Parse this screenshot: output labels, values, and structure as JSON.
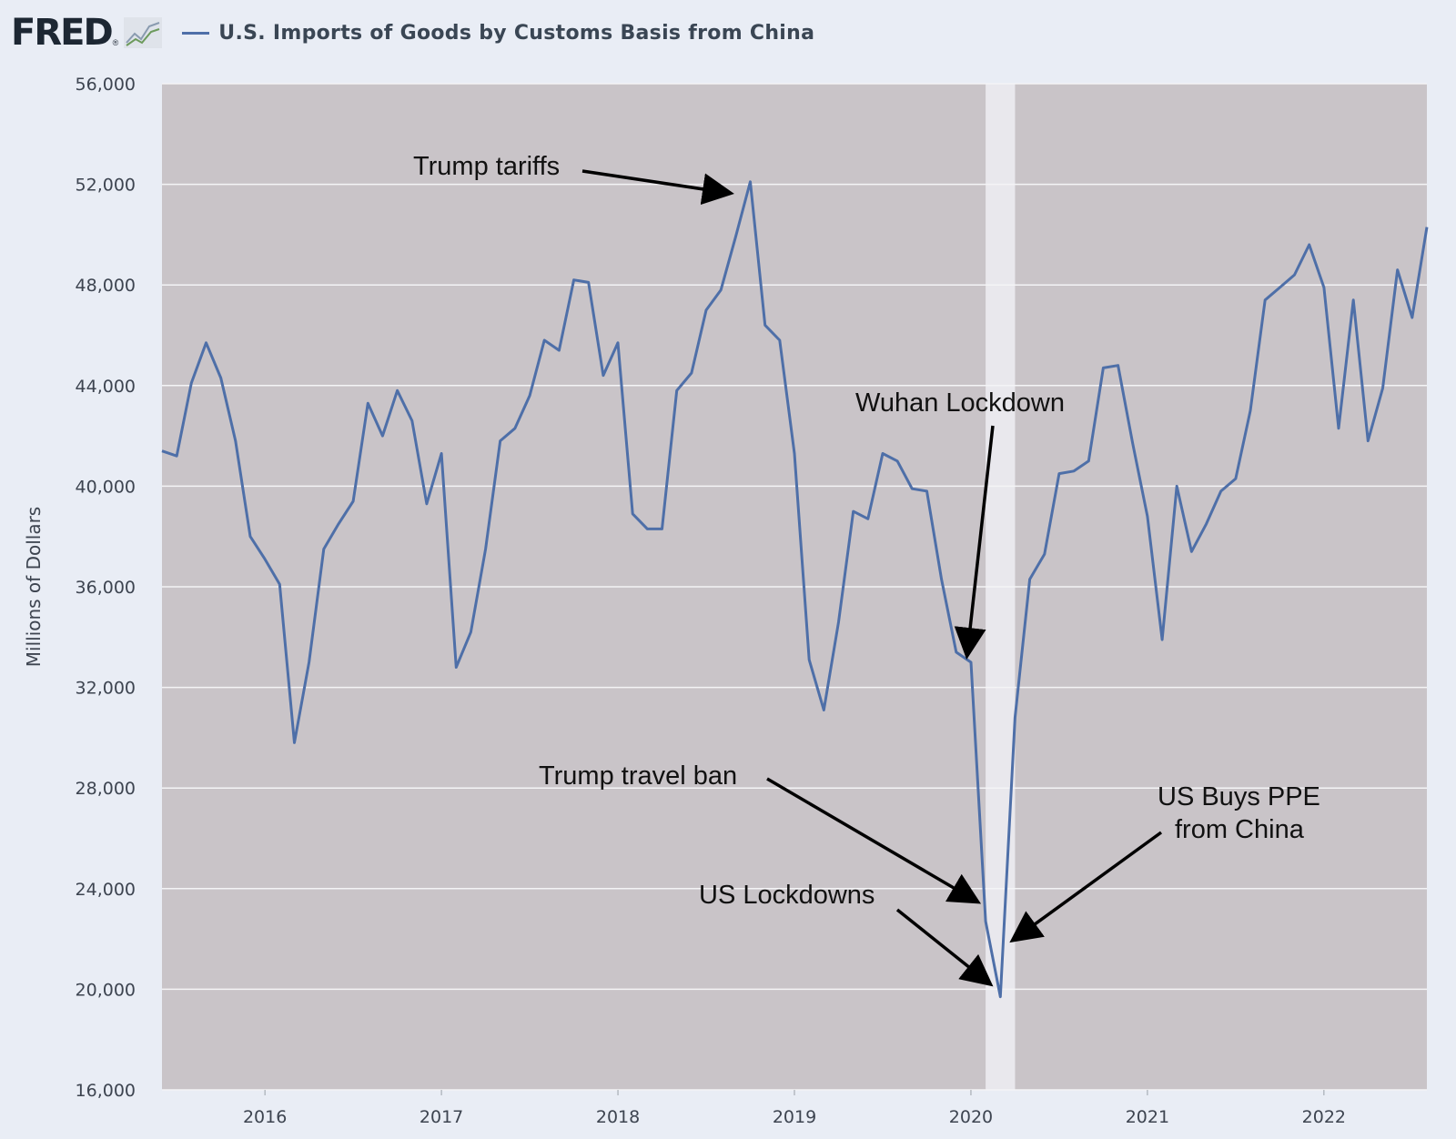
{
  "header": {
    "logo_text": "FRED",
    "logo_reg": "®",
    "title": "U.S. Imports of Goods by Customs Basis from China"
  },
  "colors": {
    "series": "#4e6fa8",
    "plot_bg": "#c9c4c8",
    "recession_band": "#e9e8ed",
    "page_bg": "#e9edf5"
  },
  "chart_data": {
    "type": "line",
    "ylabel": "Millions of Dollars",
    "ylim": [
      16000,
      56000
    ],
    "xlim": [
      "2015-06",
      "2022-08"
    ],
    "yticks": [
      16000,
      20000,
      24000,
      28000,
      32000,
      36000,
      40000,
      44000,
      48000,
      52000,
      56000
    ],
    "ytick_labels": [
      "16,000",
      "20,000",
      "24,000",
      "28,000",
      "32,000",
      "36,000",
      "40,000",
      "44,000",
      "48,000",
      "52,000",
      "56,000"
    ],
    "xtick_labels": [
      "2016",
      "2017",
      "2018",
      "2019",
      "2020",
      "2021",
      "2022"
    ],
    "grid": "horizontal",
    "shaded_period": [
      "2020-02",
      "2020-04"
    ],
    "series": [
      {
        "name": "U.S. Imports of Goods by Customs Basis from China",
        "x": [
          "2015-06",
          "2015-07",
          "2015-08",
          "2015-09",
          "2015-10",
          "2015-11",
          "2015-12",
          "2016-01",
          "2016-02",
          "2016-03",
          "2016-04",
          "2016-05",
          "2016-06",
          "2016-07",
          "2016-08",
          "2016-09",
          "2016-10",
          "2016-11",
          "2016-12",
          "2017-01",
          "2017-02",
          "2017-03",
          "2017-04",
          "2017-05",
          "2017-06",
          "2017-07",
          "2017-08",
          "2017-09",
          "2017-10",
          "2017-11",
          "2017-12",
          "2018-01",
          "2018-02",
          "2018-03",
          "2018-04",
          "2018-05",
          "2018-06",
          "2018-07",
          "2018-08",
          "2018-09",
          "2018-10",
          "2018-11",
          "2018-12",
          "2019-01",
          "2019-02",
          "2019-03",
          "2019-04",
          "2019-05",
          "2019-06",
          "2019-07",
          "2019-08",
          "2019-09",
          "2019-10",
          "2019-11",
          "2019-12",
          "2020-01",
          "2020-02",
          "2020-03",
          "2020-04",
          "2020-05",
          "2020-06",
          "2020-07",
          "2020-08",
          "2020-09",
          "2020-10",
          "2020-11",
          "2020-12",
          "2021-01",
          "2021-02",
          "2021-03",
          "2021-04",
          "2021-05",
          "2021-06",
          "2021-07",
          "2021-08",
          "2021-09",
          "2021-10",
          "2021-11",
          "2021-12",
          "2022-01",
          "2022-02",
          "2022-03",
          "2022-04",
          "2022-05",
          "2022-06",
          "2022-07",
          "2022-08"
        ],
        "values": [
          41400,
          41200,
          44100,
          45700,
          44300,
          41800,
          38000,
          37100,
          36100,
          29800,
          33000,
          37500,
          38500,
          39400,
          43300,
          42000,
          43800,
          42600,
          39300,
          41300,
          32800,
          34200,
          37500,
          41800,
          42300,
          43600,
          45800,
          45400,
          48200,
          48100,
          44400,
          45700,
          38900,
          38300,
          38300,
          43800,
          44500,
          47000,
          47800,
          49900,
          52100,
          46400,
          45800,
          41300,
          33100,
          31100,
          34600,
          39000,
          38700,
          41300,
          41000,
          39900,
          39800,
          36300,
          33400,
          33000,
          22700,
          19700,
          30800,
          36300,
          37300,
          40500,
          40600,
          41000,
          44700,
          44800,
          41700,
          38800,
          33900,
          40000,
          37400,
          38500,
          39800,
          40300,
          43000,
          47400,
          47900,
          48400,
          49600,
          47900,
          42300,
          47400,
          41800,
          43900,
          48600,
          46700,
          50300
        ]
      }
    ],
    "annotations": [
      "Trump tariffs",
      "Wuhan Lockdown",
      "Trump travel ban",
      "US Buys PPE",
      "from China",
      "US Lockdowns"
    ]
  }
}
